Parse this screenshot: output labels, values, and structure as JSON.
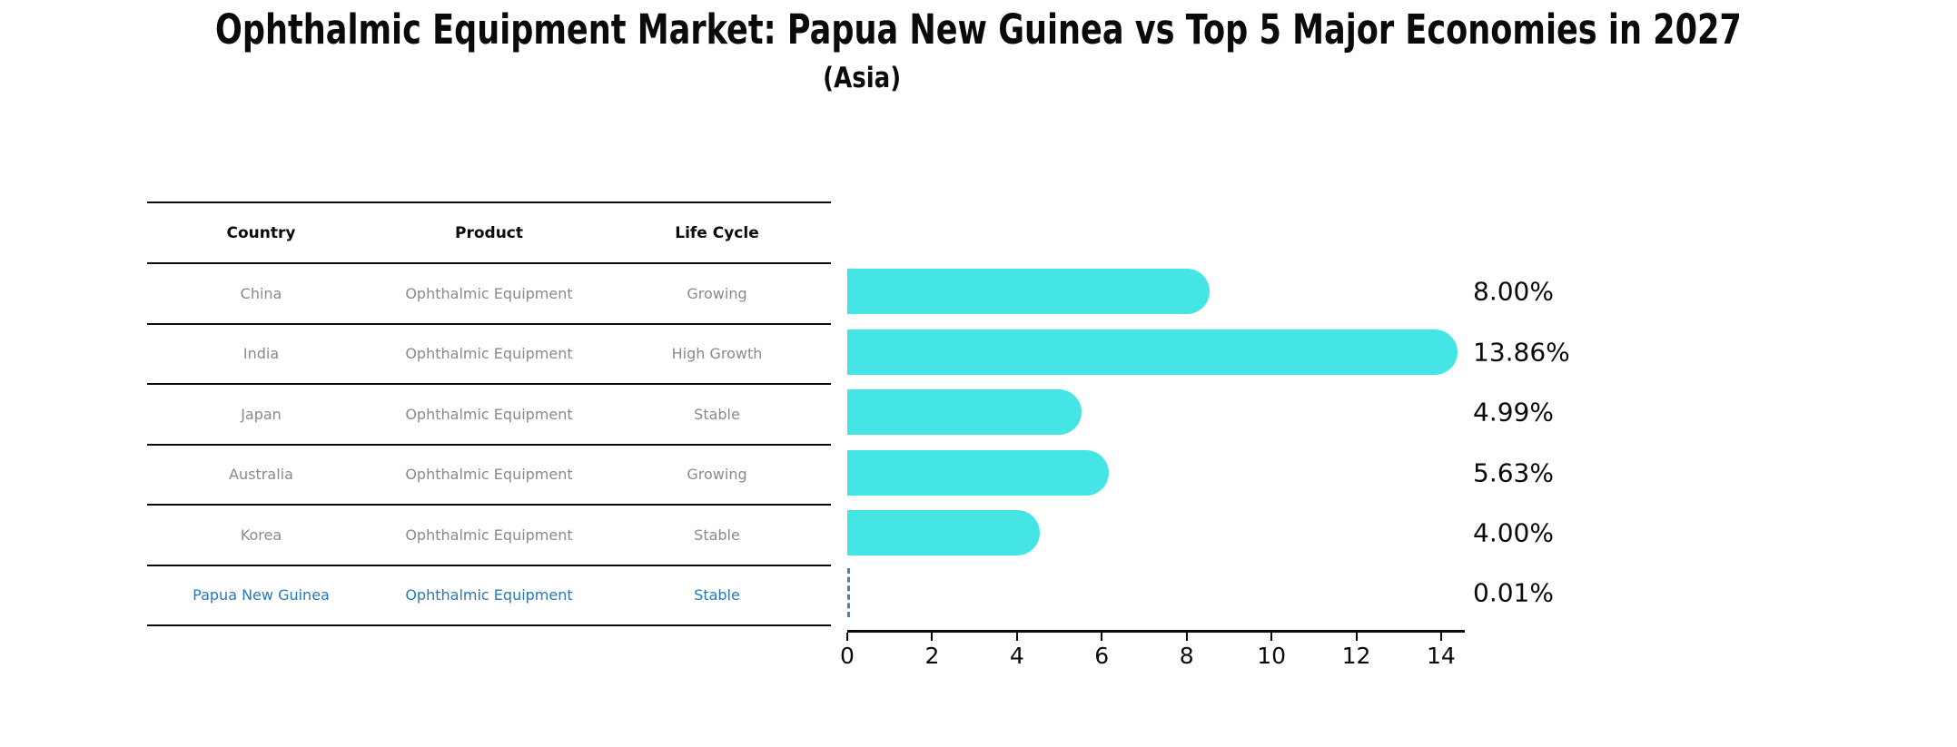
{
  "title": "Ophthalmic Equipment Market: Papua New Guinea vs Top 5 Major Economies in 2027",
  "subtitle": "(Asia)",
  "table": {
    "headers": [
      "Country",
      "Product",
      "Life Cycle"
    ],
    "rows": [
      {
        "country": "China",
        "product": "Ophthalmic Equipment",
        "life_cycle": "Growing",
        "highlighted": false
      },
      {
        "country": "India",
        "product": "Ophthalmic Equipment",
        "life_cycle": "High Growth",
        "highlighted": false
      },
      {
        "country": "Japan",
        "product": "Ophthalmic Equipment",
        "life_cycle": "Stable",
        "highlighted": false
      },
      {
        "country": "Australia",
        "product": "Ophthalmic Equipment",
        "life_cycle": "Growing",
        "highlighted": false
      },
      {
        "country": "Korea",
        "product": "Ophthalmic Equipment",
        "life_cycle": "Stable",
        "highlighted": false
      },
      {
        "country": "Papua New Guinea",
        "product": "Ophthalmic Equipment",
        "life_cycle": "Stable",
        "highlighted": true
      }
    ]
  },
  "chart_data": {
    "type": "bar",
    "orientation": "horizontal",
    "title": "Ophthalmic Equipment Market: Papua New Guinea vs Top 5 Major Economies in 2027",
    "subtitle": "(Asia)",
    "categories": [
      "China",
      "India",
      "Japan",
      "Australia",
      "Korea",
      "Papua New Guinea"
    ],
    "values": [
      8.0,
      13.86,
      4.99,
      5.63,
      4.0,
      0.01
    ],
    "value_labels": [
      "8.00%",
      "13.86%",
      "4.99%",
      "5.63%",
      "4.00%",
      "0.01%"
    ],
    "xlabel": "",
    "ylabel": "",
    "xlim": [
      0,
      14.5
    ],
    "xticks": [
      0,
      2,
      4,
      6,
      8,
      10,
      12,
      14
    ],
    "grid": false,
    "legend": false,
    "highlight_index": 5,
    "bar_color": "#46E5E5",
    "highlight_text_color": "#2979B9",
    "highlight_marker_color": "#4A80B8",
    "muted_text_color": "#8A8A8A",
    "axis_color": "#0A0A0A"
  }
}
